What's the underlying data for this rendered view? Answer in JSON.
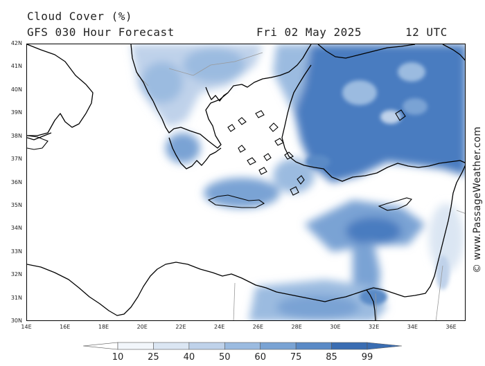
{
  "header": {
    "title": "Cloud Cover (%)",
    "subtitle": "GFS 030 Hour Forecast",
    "date": "Fri 02 May 2025",
    "time": "12 UTC"
  },
  "credit": "© www.PassageWeather.com",
  "map": {
    "lat_labels": [
      "42N",
      "41N",
      "40N",
      "39N",
      "38N",
      "37N",
      "36N",
      "35N",
      "34N",
      "33N",
      "32N",
      "31N",
      "30N"
    ],
    "lon_labels": [
      "14E",
      "16E",
      "18E",
      "20E",
      "22E",
      "24E",
      "26E",
      "28E",
      "30E",
      "32E",
      "34E",
      "36E"
    ],
    "lat_range": [
      30,
      42
    ],
    "lon_range": [
      14,
      36.75
    ]
  },
  "legend": {
    "levels": [
      "10",
      "25",
      "40",
      "50",
      "60",
      "75",
      "85",
      "99"
    ],
    "colors": [
      "#ffffff",
      "#f2f6fb",
      "#dbe6f3",
      "#bfd2ea",
      "#9bbbe0",
      "#7aa3d4",
      "#5a8ac6",
      "#3a6db2"
    ]
  }
}
